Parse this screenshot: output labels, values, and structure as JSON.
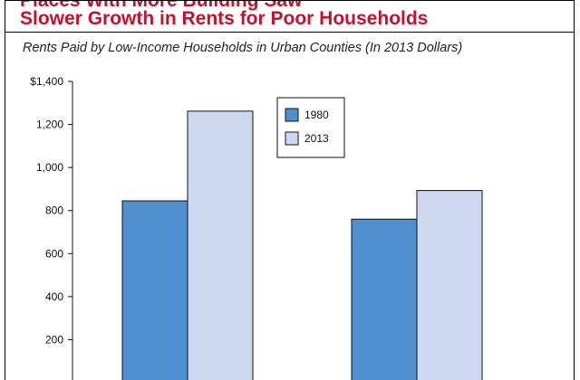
{
  "figure": {
    "title_line_1": "Places With More Building Saw",
    "title_line_2": "Slower Growth in Rents for Poor Households",
    "title_color": "#c8102e"
  },
  "chart_data": {
    "type": "bar",
    "title": "Places With More Building Saw Slower Growth in Rents for Poor Households",
    "subtitle": "Rents Paid by Low-Income Households in Urban Counties (In 2013 Dollars)",
    "categories": [
      "",
      ""
    ],
    "series": [
      {
        "name": "1980",
        "values": [
          845,
          760
        ],
        "color": "#4f8fcf"
      },
      {
        "name": "2013",
        "values": [
          1262,
          893
        ],
        "color": "#cdd8f0"
      }
    ],
    "ylim": [
      0,
      1400
    ],
    "yticks": [
      {
        "value": 200,
        "label": "200"
      },
      {
        "value": 400,
        "label": "400"
      },
      {
        "value": 600,
        "label": "600"
      },
      {
        "value": 800,
        "label": "800"
      },
      {
        "value": 1000,
        "label": "1,000"
      },
      {
        "value": 1200,
        "label": "1,200"
      },
      {
        "value": 1400,
        "label": "$1,400"
      }
    ],
    "xlabel": "",
    "ylabel": "",
    "grid": false,
    "legend_position": "top-center"
  }
}
